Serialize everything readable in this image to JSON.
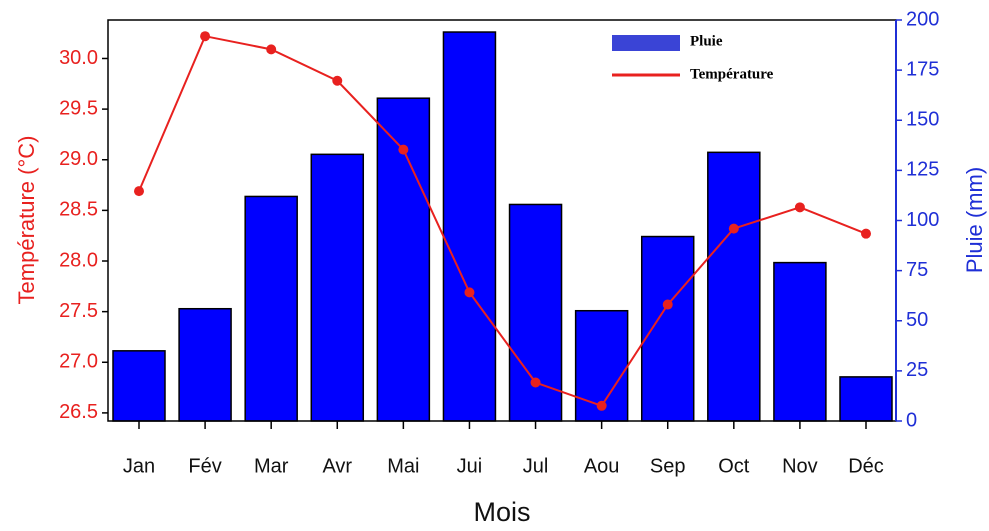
{
  "chart_data": {
    "type": "bar_line",
    "x_label": "Mois",
    "y_label": "Température (°C)",
    "y2_label": "Pluie (mm)",
    "categories": [
      "Jan",
      "Fév",
      "Mar",
      "Avr",
      "Mai",
      "Jui",
      "Jul",
      "Aou",
      "Sep",
      "Oct",
      "Nov",
      "Déc"
    ],
    "series": [
      {
        "name": "Pluie",
        "type": "bar",
        "axis": "y2",
        "color": "#0000ff",
        "values": [
          35,
          56,
          112,
          133,
          161,
          194,
          108,
          55,
          92,
          134,
          79,
          22
        ]
      },
      {
        "name": "Température",
        "type": "line",
        "axis": "y",
        "color": "#e8211f",
        "values": [
          28.69,
          30.22,
          30.09,
          29.78,
          29.1,
          27.69,
          26.8,
          26.57,
          27.57,
          28.32,
          28.53,
          28.27
        ]
      }
    ],
    "ylim": [
      26.42,
      30.38
    ],
    "yticks": [
      26.5,
      {
        "value": 27,
        "label": "27.0"
      },
      27.5,
      {
        "value": 28,
        "label": "28.0"
      },
      28.5,
      {
        "value": 29,
        "label": "29.0"
      },
      29.5,
      {
        "value": 30,
        "label": "30.0"
      }
    ],
    "y2lim": [
      0,
      200
    ],
    "y2ticks": [
      0,
      25,
      50,
      75,
      100,
      125,
      150,
      175,
      200
    ],
    "y_color": "#e8211f",
    "y2_color": "#1f2fd6",
    "legend": "upper right"
  }
}
